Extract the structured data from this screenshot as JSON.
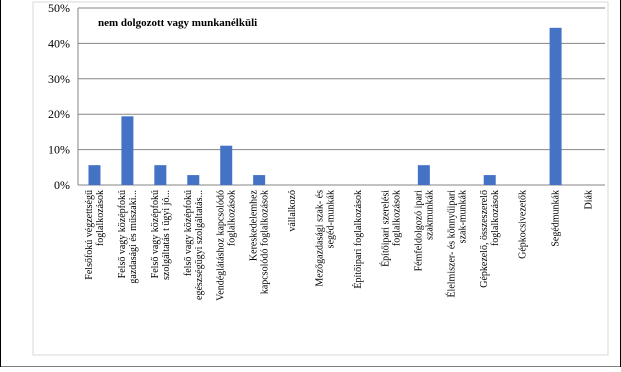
{
  "chart_data": {
    "type": "bar",
    "title": "nem dolgozott vagy munkanélküli",
    "xlabel": "",
    "ylabel": "",
    "ylim": [
      0,
      50
    ],
    "yticks": [
      "0%",
      "10%",
      "20%",
      "30%",
      "40%",
      "50%"
    ],
    "grid": true,
    "bar_color": "#4472C4",
    "categories": [
      [
        "Felsőfokú végzettségű",
        "foglalkozások"
      ],
      [
        "Felső vagy középfokú",
        "gazdasági és műszaki..."
      ],
      [
        "Felső vagy középfokú",
        "szolgáltatás t ügyi jó..."
      ],
      [
        "felső vagy középfokú",
        "egészségügyi szolgáltatás..."
      ],
      [
        "Vendéglátáshoz kapcsolódó",
        "foglalkozások"
      ],
      [
        "Kereskedelemhez",
        "kapcsolódó foglalkozások"
      ],
      [
        "vállalkozó"
      ],
      [
        "Mezőgazdasági szak- és",
        "segéd-munkák"
      ],
      [
        "Építőipari foglalkozások"
      ],
      [
        "Építőipari szerelési",
        "foglalkozások"
      ],
      [
        "Fémfeldolgozó ipari",
        "szakmunkák"
      ],
      [
        "Élelmiszer- és könnyűipari",
        "szak-munkák"
      ],
      [
        "Gépkezelő, összeszerelő",
        "foglalkozások"
      ],
      [
        "Gépkocsivezetők"
      ],
      [
        "Segédmunkák"
      ],
      [
        "Diák"
      ]
    ],
    "values": [
      5.6,
      19.4,
      5.6,
      2.8,
      11.1,
      2.8,
      0,
      0,
      0,
      0,
      5.6,
      0,
      2.8,
      0,
      44.4,
      0
    ]
  }
}
